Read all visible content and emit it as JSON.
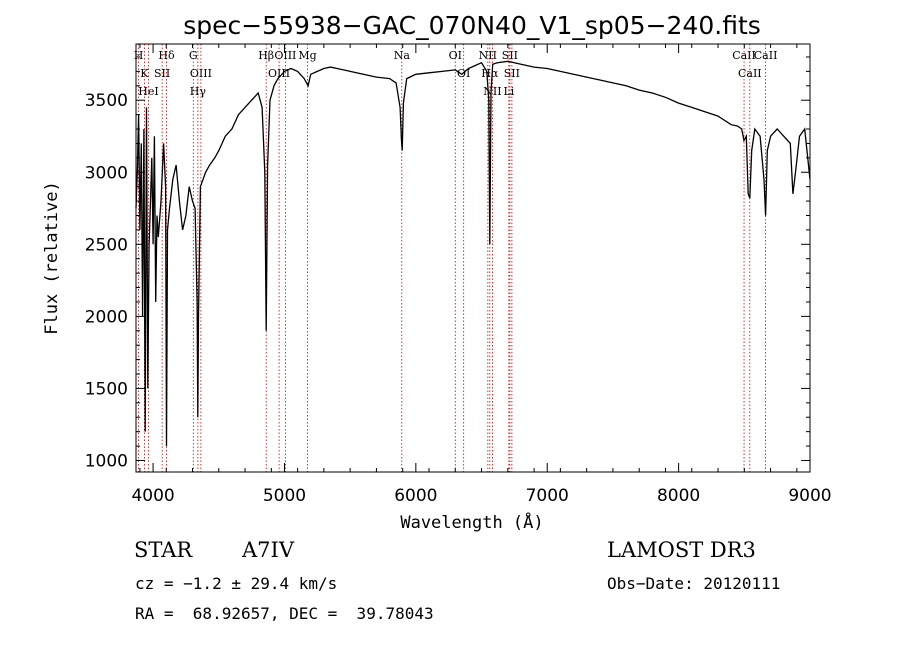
{
  "chart_data": {
    "type": "line",
    "title": "spec−55938−GAC_070N40_V1_sp05−240.fits",
    "xlabel": "Wavelength (Å)",
    "ylabel": "Flux (relative)",
    "xlim": [
      3870,
      9000
    ],
    "ylim": [
      920,
      3890
    ],
    "x_ticks": [
      4000,
      5000,
      6000,
      7000,
      8000,
      9000
    ],
    "y_ticks": [
      1000,
      1500,
      2000,
      2500,
      3000,
      3500
    ],
    "grid": false,
    "series": [
      {
        "name": "spectrum",
        "x": [
          3870,
          3880,
          3890,
          3900,
          3910,
          3920,
          3930,
          3940,
          3950,
          3960,
          3970,
          3980,
          3990,
          4000,
          4010,
          4020,
          4030,
          4040,
          4060,
          4080,
          4095,
          4102,
          4110,
          4125,
          4150,
          4175,
          4200,
          4225,
          4250,
          4275,
          4300,
          4320,
          4335,
          4340,
          4346,
          4360,
          4380,
          4400,
          4430,
          4470,
          4500,
          4550,
          4600,
          4650,
          4700,
          4750,
          4800,
          4830,
          4850,
          4861,
          4872,
          4890,
          4920,
          4950,
          5000,
          5050,
          5100,
          5150,
          5180,
          5200,
          5250,
          5300,
          5350,
          5400,
          5450,
          5500,
          5600,
          5700,
          5800,
          5850,
          5880,
          5890,
          5896,
          5905,
          5930,
          6000,
          6100,
          6200,
          6300,
          6350,
          6400,
          6450,
          6500,
          6540,
          6555,
          6563,
          6572,
          6585,
          6620,
          6700,
          6800,
          6900,
          7000,
          7100,
          7200,
          7300,
          7400,
          7500,
          7600,
          7700,
          7800,
          7900,
          8000,
          8100,
          8200,
          8300,
          8400,
          8450,
          8480,
          8498,
          8515,
          8530,
          8542,
          8556,
          8580,
          8620,
          8650,
          8662,
          8675,
          8700,
          8750,
          8800,
          8850,
          8870,
          8890,
          8920,
          8960,
          9000
        ],
        "y": [
          2750,
          3000,
          3400,
          2600,
          3200,
          2000,
          3300,
          1200,
          3450,
          1500,
          2500,
          2800,
          3100,
          2500,
          3250,
          2100,
          2700,
          2550,
          2800,
          3200,
          2900,
          1100,
          2600,
          2750,
          2950,
          3050,
          2800,
          2600,
          2700,
          2900,
          2800,
          2750,
          2100,
          1300,
          2000,
          2900,
          2950,
          3000,
          3050,
          3100,
          3150,
          3250,
          3300,
          3400,
          3450,
          3500,
          3550,
          3450,
          3000,
          1900,
          3050,
          3500,
          3600,
          3650,
          3700,
          3720,
          3700,
          3650,
          3600,
          3680,
          3700,
          3720,
          3730,
          3720,
          3710,
          3700,
          3680,
          3660,
          3650,
          3620,
          3450,
          3230,
          3150,
          3480,
          3650,
          3680,
          3690,
          3700,
          3710,
          3680,
          3720,
          3740,
          3760,
          3700,
          3500,
          2500,
          3550,
          3750,
          3760,
          3770,
          3750,
          3730,
          3720,
          3700,
          3680,
          3660,
          3640,
          3620,
          3600,
          3570,
          3550,
          3520,
          3480,
          3450,
          3420,
          3390,
          3330,
          3320,
          3300,
          3220,
          3250,
          2850,
          2820,
          3150,
          3300,
          3250,
          2950,
          2700,
          3150,
          3250,
          3300,
          3250,
          3200,
          2850,
          3000,
          3250,
          3300,
          2950
        ]
      }
    ],
    "line_markers": [
      {
        "label": "H",
        "wavelength": 3889
      },
      {
        "label": "K",
        "wavelength": 3934
      },
      {
        "label": "HeI",
        "wavelength": 3965
      },
      {
        "label": "Hδ",
        "wavelength": 4102
      },
      {
        "label": "SII",
        "wavelength": 4069
      },
      {
        "label": "G",
        "wavelength": 4306
      },
      {
        "label": "OIII",
        "wavelength": 4364
      },
      {
        "label": "Hγ",
        "wavelength": 4341
      },
      {
        "label": "Hβ",
        "wavelength": 4861
      },
      {
        "label": "OIII",
        "wavelength": 4959
      },
      {
        "label": "OIII",
        "wavelength": 5007
      },
      {
        "label": "Mg",
        "wavelength": 5176
      },
      {
        "label": "Na",
        "wavelength": 5893
      },
      {
        "label": "OI",
        "wavelength": 6300
      },
      {
        "label": "OI",
        "wavelength": 6364
      },
      {
        "label": "NII",
        "wavelength": 6548
      },
      {
        "label": "Hα",
        "wavelength": 6563
      },
      {
        "label": "NII",
        "wavelength": 6583
      },
      {
        "label": "SII",
        "wavelength": 6716
      },
      {
        "label": "SII",
        "wavelength": 6731
      },
      {
        "label": "Li",
        "wavelength": 6708
      },
      {
        "label": "CaII",
        "wavelength": 8498
      },
      {
        "label": "CaII",
        "wavelength": 8542
      },
      {
        "label": "CaII",
        "wavelength": 8662
      }
    ]
  },
  "info": {
    "object_class": "STAR",
    "subclass": "A7IV",
    "survey": "LAMOST DR3",
    "cz": "cz = −1.2 ± 29.4 km/s",
    "obs_date": "Obs−Date: 20120111",
    "coords": "RA =  68.92657, DEC =  39.78043"
  },
  "colors": {
    "spectrum": "#000000",
    "marker": "#cc0000",
    "axes": "#000000"
  }
}
